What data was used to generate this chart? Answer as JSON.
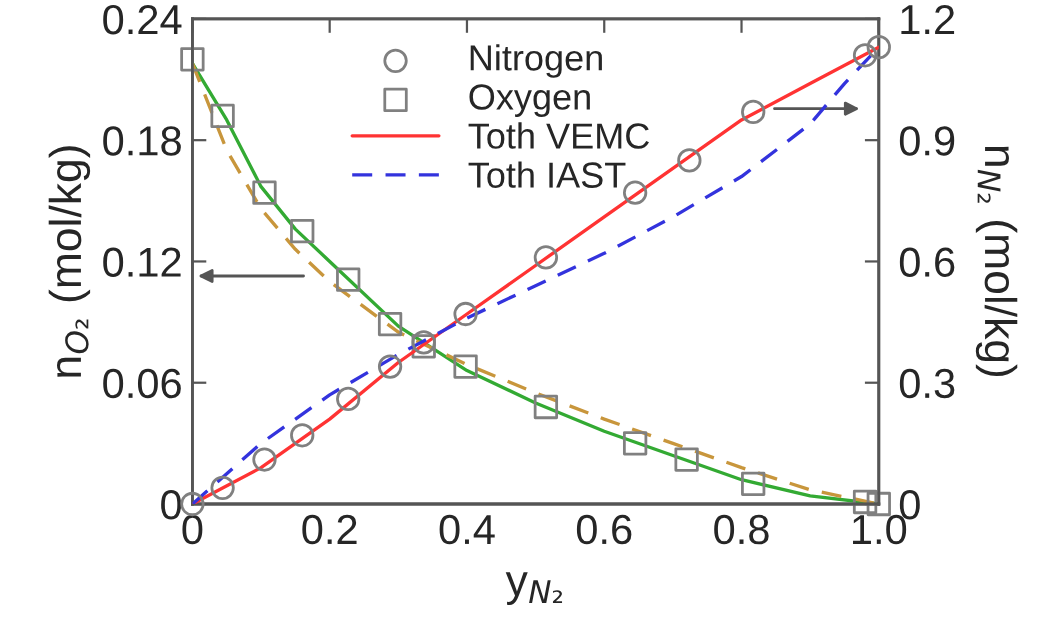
{
  "chart_data": {
    "type": "scatter",
    "xlabel": "y$_{N₂}$",
    "ylabel": "n$_{O₂}$ (mol/kg)",
    "y2label": "n$_{N₂}$ (mol/kg)",
    "xlim": [
      0,
      1.0
    ],
    "xticks": [
      0,
      0.2,
      0.4,
      0.6,
      0.8,
      {
        "value": 1.0,
        "label": "1.0"
      }
    ],
    "ylim": [
      0,
      0.24
    ],
    "yticks": [
      0,
      0.06,
      0.12,
      0.18,
      0.24
    ],
    "y2lim": [
      0,
      1.2
    ],
    "y2ticks": [
      0,
      0.3,
      0.6,
      0.9,
      1.2
    ],
    "grid": false,
    "legend": "top",
    "series": [
      {
        "name": "Nitrogen",
        "marker": "circle",
        "axis": "y2",
        "color": "#808080",
        "x": [
          0,
          0.044,
          0.105,
          0.16,
          0.227,
          0.288,
          0.337,
          0.398,
          0.515,
          0.645,
          0.724,
          0.817,
          0.98,
          1.0
        ],
        "values": [
          0,
          0.04,
          0.11,
          0.17,
          0.26,
          0.34,
          0.4,
          0.47,
          0.61,
          0.77,
          0.85,
          0.97,
          1.11,
          1.13
        ]
      },
      {
        "name": "Oxygen",
        "marker": "square",
        "color": "#808080",
        "x": [
          0,
          0.044,
          0.105,
          0.16,
          0.227,
          0.288,
          0.337,
          0.398,
          0.515,
          0.645,
          0.72,
          0.817,
          0.98,
          1.0
        ],
        "values": [
          0.22,
          0.192,
          0.154,
          0.135,
          0.111,
          0.089,
          0.078,
          0.068,
          0.048,
          0.03,
          0.022,
          0.01,
          0.001,
          0
        ]
      },
      {
        "name": "Toth VEMC",
        "type": "line",
        "line_style": "solid",
        "axis": "y2",
        "color": "#ff3333",
        "x": [
          0,
          0.1,
          0.2,
          0.3,
          0.4,
          0.5,
          0.6,
          0.7,
          0.8,
          0.9,
          1.0
        ],
        "values": [
          0,
          0.09,
          0.21,
          0.35,
          0.47,
          0.59,
          0.71,
          0.83,
          0.95,
          1.04,
          1.13
        ]
      },
      {
        "name": "Toth IAST",
        "type": "line",
        "line_style": "dashed",
        "axis": "y2",
        "color": "#3333dd",
        "x": [
          0,
          0.1,
          0.2,
          0.3,
          0.4,
          0.5,
          0.6,
          0.7,
          0.8,
          0.9,
          0.95,
          1.0
        ],
        "values": [
          0,
          0.15,
          0.27,
          0.37,
          0.46,
          0.54,
          0.62,
          0.71,
          0.81,
          0.94,
          1.04,
          1.13
        ]
      },
      {
        "type": "line",
        "line_style": "solid",
        "color": "#33aa33",
        "x": [
          0,
          0.05,
          0.1,
          0.15,
          0.2,
          0.3,
          0.35,
          0.4,
          0.5,
          0.6,
          0.7,
          0.8,
          0.9,
          1.0
        ],
        "values": [
          0.218,
          0.19,
          0.157,
          0.136,
          0.12,
          0.088,
          0.077,
          0.066,
          0.05,
          0.036,
          0.024,
          0.012,
          0.004,
          0
        ]
      },
      {
        "type": "line",
        "line_style": "dashed",
        "color": "#c8963c",
        "x": [
          0,
          0.05,
          0.1,
          0.15,
          0.2,
          0.3,
          0.4,
          0.5,
          0.6,
          0.7,
          0.8,
          0.9,
          1.0
        ],
        "values": [
          0.218,
          0.175,
          0.146,
          0.126,
          0.11,
          0.085,
          0.069,
          0.055,
          0.042,
          0.03,
          0.018,
          0.007,
          0
        ]
      }
    ]
  }
}
